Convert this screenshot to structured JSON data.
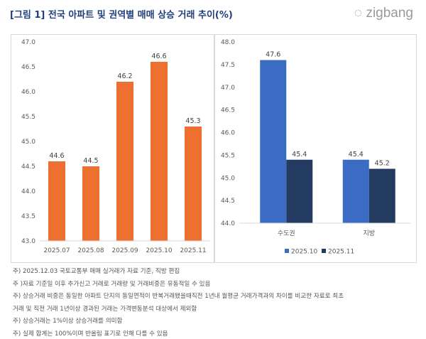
{
  "title": "[그림 1] 전국 아파트 및 권역별 매매 상승 거래 추이(%)",
  "logo": "zigbang",
  "chart_data": [
    {
      "type": "bar",
      "categories": [
        "2025.07",
        "2025.08",
        "2025.09",
        "2025.10",
        "2025.11"
      ],
      "values": [
        44.6,
        44.5,
        46.2,
        46.6,
        45.3
      ],
      "ylim": [
        43.0,
        47.0
      ],
      "yticks": [
        "43.0",
        "43.5",
        "44.0",
        "44.5",
        "45.0",
        "45.5",
        "46.0",
        "46.5",
        "47.0"
      ],
      "color": "#ed7030",
      "grid": false
    },
    {
      "type": "bar",
      "categories": [
        "수도권",
        "지방"
      ],
      "series": [
        {
          "name": "2025.10",
          "values": [
            47.6,
            45.4
          ],
          "color": "#3a6cc3"
        },
        {
          "name": "2025.11",
          "values": [
            45.4,
            45.2
          ],
          "color": "#233b60"
        }
      ],
      "ylim": [
        44.0,
        48.0
      ],
      "yticks": [
        "44.0",
        "44.5",
        "45.0",
        "45.5",
        "46.0",
        "46.5",
        "47.0",
        "47.5",
        "48.0"
      ],
      "legend": "bottom",
      "grid": false
    }
  ],
  "notes": [
    "주) 2025.12.03 국토교통부 매매 실거래가 자료 기준, 직방 편집",
    "주 )자료 기준일 이후 추가신고 거래로 거래량 및 거래비중은 유동적일 수 있음",
    "주) 상승거래 비중은 동일한 아파트 단지의 동일면적이 반복거래됐을때직전 1년내 월평균 거래가격과의 차이를 비교한 자료로 최초",
    "거래 및 직전 거래 1년이상 경과된 거래는 가격변동분석 대상에서 제외함",
    "주) 상승거래는 1%이상 상승거래를 의미함",
    "주) 실제 합계는 100%이며 반올림 표기로 인해 다를 수 있음"
  ]
}
